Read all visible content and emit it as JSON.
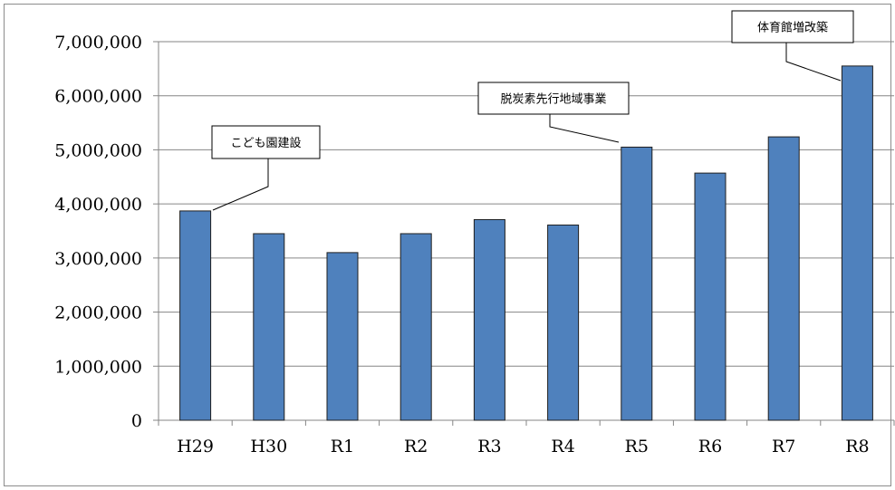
{
  "chart_data": {
    "type": "bar",
    "categories": [
      "H29",
      "H30",
      "R1",
      "R2",
      "R3",
      "R4",
      "R5",
      "R6",
      "R7",
      "R8"
    ],
    "values": [
      3870000,
      3450000,
      3100000,
      3450000,
      3710000,
      3610000,
      5050000,
      4570000,
      5240000,
      6550000
    ],
    "ylim": [
      0,
      7000000
    ],
    "yticks": [
      0,
      1000000,
      2000000,
      3000000,
      4000000,
      5000000,
      6000000,
      7000000
    ],
    "ytick_labels": [
      "0",
      "1,000,000",
      "2,000,000",
      "3,000,000",
      "4,000,000",
      "5,000,000",
      "6,000,000",
      "7,000,000"
    ],
    "grid": true,
    "legend": "none",
    "bar_color": "#4f81bd",
    "bar_edge_color": "#1f1f1f",
    "annotations": [
      {
        "text": "こども園建設",
        "category": "H29"
      },
      {
        "text": "脱炭素先行地域事業",
        "category": "R5"
      },
      {
        "text": "体育館増改築",
        "category": "R8"
      }
    ]
  }
}
